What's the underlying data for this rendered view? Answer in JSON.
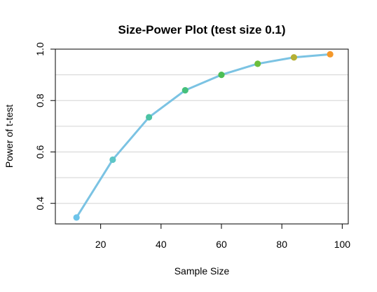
{
  "chart_data": {
    "type": "line",
    "title": "Size-Power Plot (test size 0.1)",
    "xlabel": "Sample Size",
    "ylabel": "Power of t-test",
    "x": [
      12,
      24,
      36,
      48,
      60,
      72,
      84,
      96
    ],
    "series": [
      {
        "values": [
          0.345,
          0.57,
          0.735,
          0.84,
          0.9,
          0.943,
          0.968,
          0.98
        ]
      }
    ],
    "point_colors": [
      "#6CC4EA",
      "#5EC6C6",
      "#4CC3A4",
      "#45C07C",
      "#4CBE55",
      "#6BBE3C",
      "#B5B034",
      "#F4982A"
    ],
    "line_color": "#7BC3E3",
    "xlim": [
      5,
      102
    ],
    "ylim": [
      0.32,
      1.0
    ],
    "x_ticks": [
      20,
      40,
      60,
      80,
      100
    ],
    "y_ticks": [
      0.4,
      0.6,
      0.8,
      1.0
    ],
    "x_tick_labels": [
      "20",
      "40",
      "60",
      "80",
      "100"
    ],
    "y_tick_labels": [
      "0.4",
      "0.6",
      "0.8",
      "1.0"
    ],
    "gridlines_y": [
      0.4,
      0.5,
      0.6,
      0.7,
      0.8,
      0.9,
      1.0
    ],
    "grid": true,
    "grid_color": "#D3D3D3"
  }
}
